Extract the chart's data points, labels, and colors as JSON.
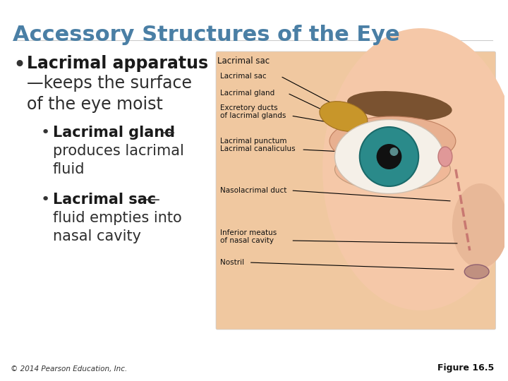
{
  "title": "Accessory Structures of the Eye",
  "title_color": "#4a7fa5",
  "title_fontsize": 22,
  "bg_color": "#ffffff",
  "bullet1_bold": "Lacrimal apparatus",
  "bullet1_label": "Lacrimal sac",
  "bullet1_rest": "—keeps the surface\nof the eye moist",
  "bullet2_bold": "Lacrimal gland",
  "bullet2_rest": "—\nproduces lacrimal\nfluid",
  "bullet3_bold": "Lacrimal sac",
  "bullet3_rest": "—\nfluid empties into\nnasal cavity",
  "labels": [
    "Lacrimal sac",
    "Lacrimal gland",
    "Excretory ducts\nof lacrimal glands",
    "Lacrimal punctum\nLacrimal canaliculus",
    "Nasolacrimal duct",
    "Inferior meatus\nof nasal cavity",
    "Nostril"
  ],
  "footer_left": "© 2014 Pearson Education, Inc.",
  "footer_right": "Figure 16.5",
  "text_color": "#000000",
  "bullet_color": "#2d2d2d",
  "bold_color": "#1a1a1a"
}
